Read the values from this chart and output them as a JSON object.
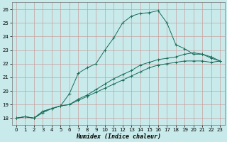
{
  "xlabel": "Humidex (Indice chaleur)",
  "background_color": "#c8eaea",
  "grid_color": "#c8a0a0",
  "line_color": "#1a6b5a",
  "xlim": [
    -0.5,
    23.5
  ],
  "ylim": [
    17.5,
    26.5
  ],
  "xticks": [
    0,
    1,
    2,
    3,
    4,
    5,
    6,
    7,
    8,
    9,
    10,
    11,
    12,
    13,
    14,
    15,
    16,
    17,
    18,
    19,
    20,
    21,
    22,
    23
  ],
  "yticks": [
    18,
    19,
    20,
    21,
    22,
    23,
    24,
    25,
    26
  ],
  "series": [
    {
      "x": [
        0,
        1,
        2,
        3,
        4,
        5,
        6,
        7,
        8,
        9,
        10,
        11,
        12,
        13,
        14,
        15,
        16,
        17,
        18,
        19,
        20,
        21,
        22,
        23
      ],
      "y": [
        18.0,
        18.1,
        18.0,
        18.4,
        18.7,
        18.9,
        19.8,
        21.3,
        21.7,
        22.0,
        23.0,
        23.9,
        25.0,
        25.5,
        25.7,
        25.75,
        25.9,
        25.0,
        23.4,
        23.1,
        22.7,
        22.7,
        22.5,
        22.2
      ]
    },
    {
      "x": [
        0,
        1,
        2,
        3,
        4,
        5,
        6,
        7,
        8,
        9,
        10,
        11,
        12,
        13,
        14,
        15,
        16,
        17,
        18,
        19,
        20,
        21,
        22,
        23
      ],
      "y": [
        18.0,
        18.1,
        18.0,
        18.5,
        18.7,
        18.9,
        19.0,
        19.4,
        19.7,
        20.1,
        20.5,
        20.9,
        21.2,
        21.5,
        21.9,
        22.1,
        22.3,
        22.4,
        22.5,
        22.7,
        22.8,
        22.7,
        22.4,
        22.2
      ]
    },
    {
      "x": [
        0,
        1,
        2,
        3,
        4,
        5,
        6,
        7,
        8,
        9,
        10,
        11,
        12,
        13,
        14,
        15,
        16,
        17,
        18,
        19,
        20,
        21,
        22,
        23
      ],
      "y": [
        18.0,
        18.1,
        18.0,
        18.5,
        18.7,
        18.9,
        19.0,
        19.3,
        19.6,
        19.9,
        20.2,
        20.5,
        20.8,
        21.1,
        21.4,
        21.7,
        21.9,
        22.0,
        22.1,
        22.2,
        22.2,
        22.2,
        22.1,
        22.2
      ]
    }
  ]
}
